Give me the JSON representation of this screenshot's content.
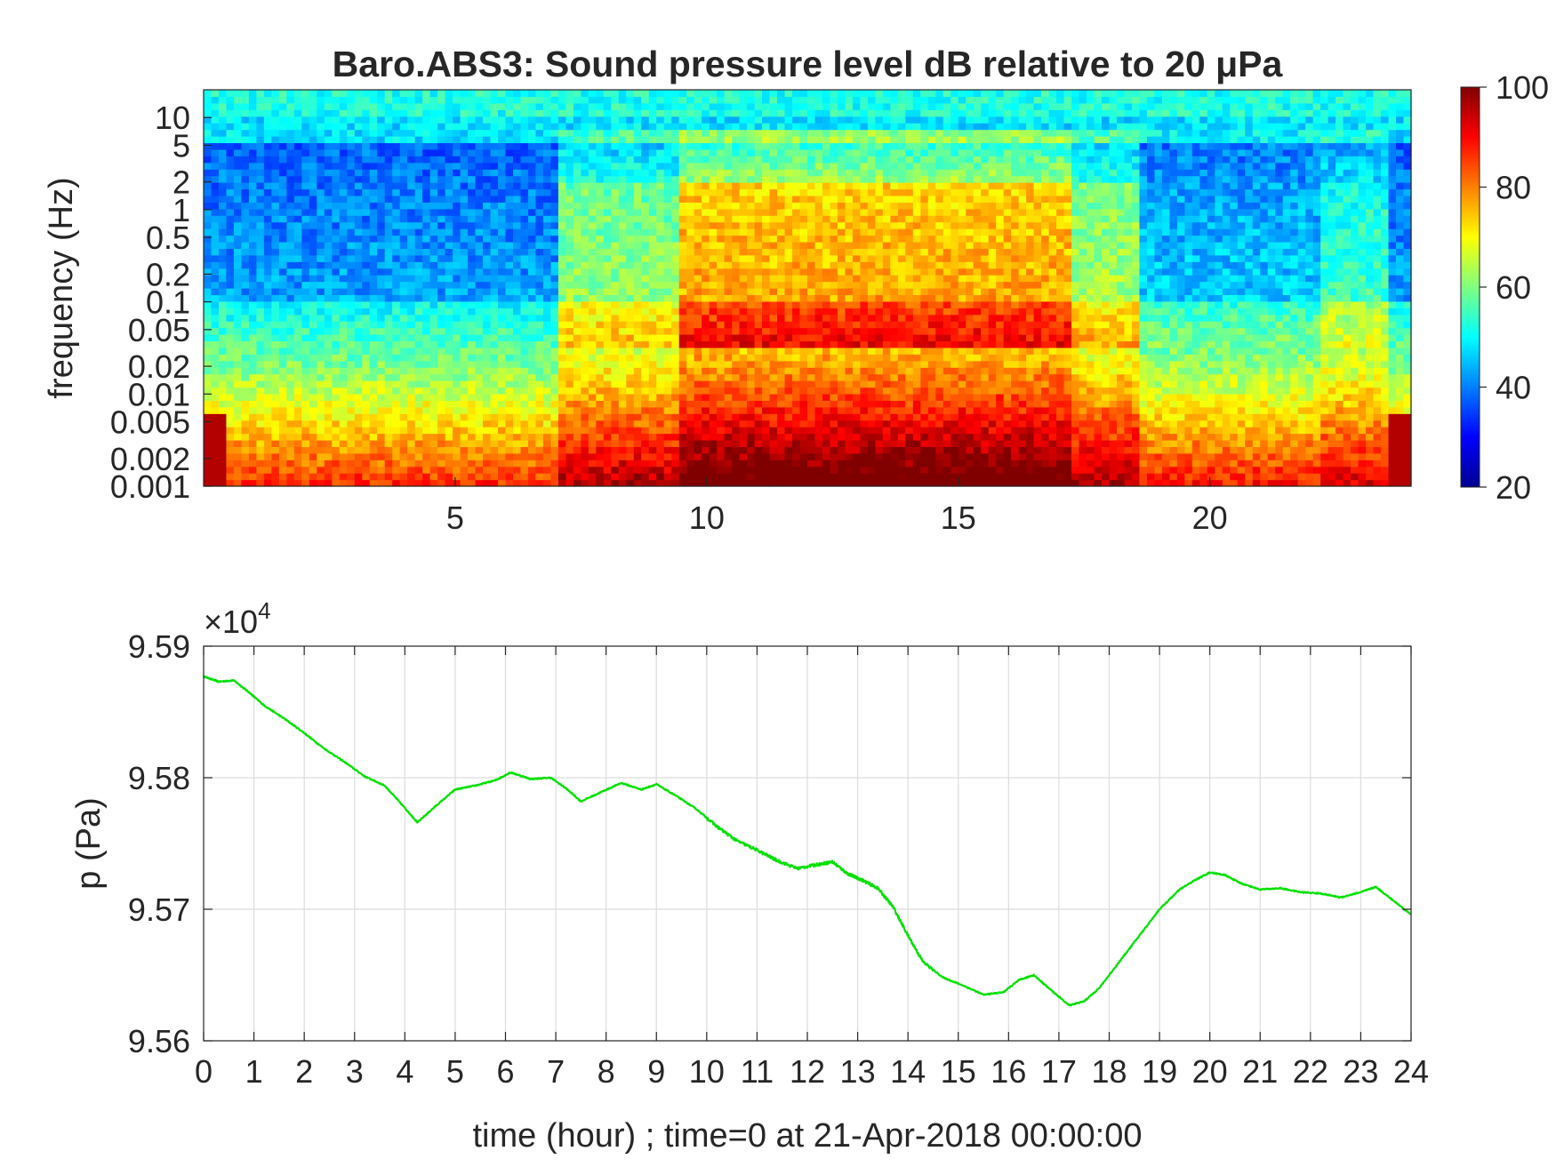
{
  "figure": {
    "background": "#ffffff"
  },
  "chart_data": [
    {
      "type": "heatmap",
      "title": "Baro.ABS3: Sound pressure level dB relative to 20 μPa",
      "xlabel": "",
      "ylabel": "frequency (Hz)",
      "x_unit": "hour",
      "xlim": [
        0,
        24
      ],
      "ylim": [
        0.001,
        20
      ],
      "y_scale": "log",
      "x_ticks": [
        5,
        10,
        15,
        20
      ],
      "y_ticks": [
        0.001,
        0.002,
        0.005,
        0.01,
        0.02,
        0.05,
        0.1,
        0.2,
        0.5,
        1,
        2,
        5,
        10
      ],
      "y_tick_labels": [
        "0.001",
        "0.002",
        "0.005",
        "0.01",
        "0.02",
        "0.05",
        "0.1",
        "0.2",
        "0.5",
        "1",
        "2",
        "5",
        "10"
      ],
      "colormap": "jet",
      "colorbar": {
        "range": [
          20,
          100
        ],
        "ticks": [
          20,
          40,
          60,
          80,
          100
        ],
        "tick_labels": [
          "20",
          "40",
          "60",
          "80",
          "100"
        ],
        "placement": "right"
      },
      "grid": false,
      "description_values": {
        "activity_bands_hours": [
          [
            7,
            9.5
          ],
          [
            9.5,
            18.5
          ],
          [
            22.2,
            23.5
          ]
        ],
        "peak_level_db": 95,
        "quiet_level_db": 42
      }
    },
    {
      "type": "line",
      "title": "",
      "xlabel": "time (hour) ; time=0 at 21-Apr-2018 00:00:00",
      "ylabel": "p (Pa)",
      "y_multiplier": "×10^4",
      "xlim": [
        0,
        24
      ],
      "ylim": [
        9.56,
        9.59
      ],
      "x_ticks": [
        0,
        1,
        2,
        3,
        4,
        5,
        6,
        7,
        8,
        9,
        10,
        11,
        12,
        13,
        14,
        15,
        16,
        17,
        18,
        19,
        20,
        21,
        22,
        23,
        24
      ],
      "x_tick_labels": [
        "0",
        "1",
        "2",
        "3",
        "4",
        "5",
        "6",
        "7",
        "8",
        "9",
        "10",
        "11",
        "12",
        "13",
        "14",
        "15",
        "16",
        "17",
        "18",
        "19",
        "20",
        "21",
        "22",
        "23",
        "24"
      ],
      "y_ticks": [
        9.56,
        9.57,
        9.58,
        9.59
      ],
      "y_tick_labels": [
        "9.56",
        "9.57",
        "9.58",
        "9.59"
      ],
      "grid": true,
      "series": [
        {
          "color": "#00e000",
          "x": [
            0,
            0.3,
            0.6,
            0.9,
            1.2,
            1.6,
            2.0,
            2.4,
            2.8,
            3.2,
            3.6,
            4.0,
            4.25,
            4.6,
            5.0,
            5.4,
            5.8,
            6.1,
            6.5,
            6.9,
            7.2,
            7.5,
            7.9,
            8.3,
            8.7,
            9.0,
            9.4,
            9.8,
            10.2,
            10.6,
            11.0,
            11.4,
            11.8,
            12.2,
            12.5,
            12.8,
            13.1,
            13.4,
            13.7,
            14.0,
            14.3,
            14.7,
            15.1,
            15.5,
            15.9,
            16.2,
            16.5,
            16.8,
            17.2,
            17.5,
            17.8,
            18.2,
            18.6,
            19.0,
            19.4,
            19.7,
            20.0,
            20.3,
            20.6,
            21.0,
            21.4,
            21.8,
            22.2,
            22.6,
            23.0,
            23.3,
            23.6,
            24.0
          ],
          "values": [
            9.5877,
            9.5873,
            9.5874,
            9.5865,
            9.5855,
            9.5845,
            9.5834,
            9.5822,
            9.5812,
            9.5801,
            9.5794,
            9.5777,
            9.5766,
            9.5778,
            9.5791,
            9.5794,
            9.5798,
            9.5804,
            9.5799,
            9.58,
            9.5792,
            9.5782,
            9.5789,
            9.5796,
            9.5791,
            9.5795,
            9.5786,
            9.5776,
            9.5763,
            9.5752,
            9.5745,
            9.5737,
            9.5731,
            9.5734,
            9.5736,
            9.5727,
            9.5722,
            9.5716,
            9.5702,
            9.568,
            9.566,
            9.5648,
            9.5642,
            9.5635,
            9.5637,
            9.5646,
            9.565,
            9.564,
            9.5627,
            9.563,
            9.564,
            9.566,
            9.568,
            9.57,
            9.5715,
            9.5722,
            9.5728,
            9.5726,
            9.572,
            9.5715,
            9.5716,
            9.5713,
            9.5712,
            9.5709,
            9.5713,
            9.5717,
            9.5708,
            9.5696
          ]
        }
      ]
    }
  ]
}
